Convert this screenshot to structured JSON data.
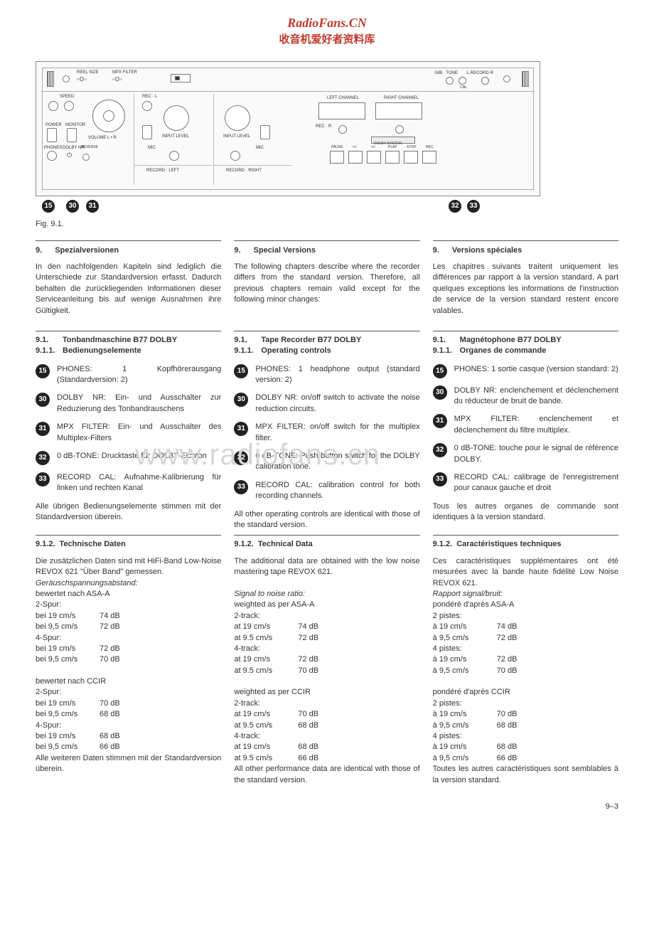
{
  "site": {
    "title": "RadioFans.CN",
    "subtitle": "收音机爱好者资料库"
  },
  "figure": {
    "caption": "Fig. 9.1.",
    "callouts": [
      "15",
      "30",
      "31",
      "32",
      "33"
    ],
    "panel_labels": {
      "reel_size": "REEL SIZE",
      "mpx_filter": "MPX FILTER",
      "speed": "SPEED",
      "power": "POWER",
      "monitor": "MONITOR",
      "volume": "VOLUME  L • R",
      "phones": "PHONES",
      "dolby": "DOLBY NR",
      "reverse": "REVERSE",
      "rec_l": "REC · L",
      "input_level_l": "INPUT LEVEL",
      "mic_l": "MIC",
      "record_left": "RECORD · LEFT",
      "input_level_r": "INPUT LEVEL",
      "mic_r": "MIC",
      "record_right": "RECORD · RIGHT",
      "left_ch": "LEFT CHANNEL",
      "right_ch": "RIGHT CHANNEL",
      "rec_r": "REC · R",
      "dolby_sys": "DOLBY SYSTEM",
      "pause": "PAUSE",
      "rew": "<<",
      "ffwd": ">>",
      "play": "PLAY",
      "stop": "STOP",
      "rec": "REC",
      "odb": "0dB · TONE",
      "lrecord": "L·RECORD·R",
      "cal": "CAL"
    }
  },
  "watermark": "www.radiofans.cn",
  "columns": {
    "de": {
      "sec9_num": "9.",
      "sec9_title": "Spezialversionen",
      "intro": "In den nachfolgenden Kapiteln sind lediglich die Unterschiede zur Standardversion erfasst. Dadurch behalten die zurückliegenden Informationen dieser Serviceanleitung bis auf wenige Ausnahmen ihre Gültigkeit.",
      "s911_num": "9.1.",
      "s911_title": "Tonbandmaschine B77 DOLBY",
      "s9111_num": "9.1.1.",
      "s9111_title": "Bedienungselemente",
      "controls": [
        {
          "n": "15",
          "t": "PHONES: 1 Kopfhörerausgang (Standardversion: 2)"
        },
        {
          "n": "30",
          "t": "DOLBY NR: Ein- und Ausschalter zur Reduzierung des Tonbandrauschens"
        },
        {
          "n": "31",
          "t": "MPX FILTER: Ein- und Ausschalter des Multiplex-Filters"
        },
        {
          "n": "32",
          "t": "0 dB-TONE: Drucktaste für DOLBY-Eichton"
        },
        {
          "n": "33",
          "t": "RECORD CAL: Aufnahme-Kalibrierung für linken und rechten Kanal"
        }
      ],
      "controls_note": "Alle übrigen Bedienungselemente stimmen mit der Standardversion überein.",
      "s9112_num": "9.1.2.",
      "s9112_title": "Technische Daten",
      "tech_intro": "Die zusätzlichen Daten sind mit HiFi-Band Low-Noise REVOX 621 \"Über Band\" gemessen.",
      "snr_label": "Geräuschspannungsabstand:",
      "w1": "bewertet nach ASA-A",
      "g1": "2-Spur:",
      "r1a": "bei 19  cm/s",
      "v1a": "74 dB",
      "r1b": "bei 9,5 cm/s",
      "v1b": "72 dB",
      "g2": "4-Spur:",
      "r2a": "bei 19  cm/s",
      "v2a": "72 dB",
      "r2b": "bei 9,5 cm/s",
      "v2b": "70 dB",
      "w2": "bewertet nach CCIR",
      "g3": "2-Spur:",
      "r3a": "bei 19  cm/s",
      "v3a": "70 dB",
      "r3b": "bei 9,5 cm/s",
      "v3b": "68 dB",
      "g4": "4-Spur:",
      "r4a": "bei 19  cm/s",
      "v4a": "68 dB",
      "r4b": "bei 9,5 cm/s",
      "v4b": "66 dB",
      "tech_note": "Alle weiteren Daten stimmen mit der Standardversion überein."
    },
    "en": {
      "sec9_num": "9.",
      "sec9_title": "Special Versions",
      "intro": "The following chapters describe where the recorder differs from the standard version. Therefore, all previous chapters remain valid except for the following minor changes:",
      "s911_num": "9.1.",
      "s911_title": "Tape Recorder B77 DOLBY",
      "s9111_num": "9.1.1.",
      "s9111_title": "Operating controls",
      "controls": [
        {
          "n": "15",
          "t": "PHONES: 1 headphone output (standard version: 2)"
        },
        {
          "n": "30",
          "t": "DOLBY NR: on/off switch to activate the noise reduction circuits."
        },
        {
          "n": "31",
          "t": "MPX FILTER: on/off switch for the multiplex filter."
        },
        {
          "n": "32",
          "t": "0 dB-TONE: Push-button switch for the DOLBY calibration tone."
        },
        {
          "n": "33",
          "t": "RECORD CAL: calibration control for both recording channels."
        }
      ],
      "controls_note": "All other operating controls are identical with those of the standard version.",
      "s9112_num": "9.1.2.",
      "s9112_title": "Technical Data",
      "tech_intro": "The additional data are obtained with the low noise mastering tape REVOX 621.",
      "snr_label": "Signal to noise ratio:",
      "w1": "weighted as per ASA-A",
      "g1": "2-track:",
      "r1a": "at 19  cm/s",
      "v1a": "74 dB",
      "r1b": "at 9.5 cm/s",
      "v1b": "72 dB",
      "g2": "4-track:",
      "r2a": "at 19  cm/s",
      "v2a": "72 dB",
      "r2b": "at 9.5 cm/s",
      "v2b": "70 dB",
      "w2": "weighted as per CCIR",
      "g3": "2-track:",
      "r3a": "at 19  cm/s",
      "v3a": "70 dB",
      "r3b": "at 9.5 cm/s",
      "v3b": "68 dB",
      "g4": "4-track:",
      "r4a": "at 19  cm/s",
      "v4a": "68 dB",
      "r4b": "at 9.5 cm/s",
      "v4b": "66 dB",
      "tech_note": "All other performance data are identical with those of the standard version."
    },
    "fr": {
      "sec9_num": "9.",
      "sec9_title": "Versions spéciales",
      "intro": "Les chapitres suivants traitent uniquement les différences par rapport à la version standard. A part quelques exceptions les informations de l'instruction de service de la version standard restent encore valables.",
      "s911_num": "9.1.",
      "s911_title": "Magnétophone B77 DOLBY",
      "s9111_num": "9.1.1.",
      "s9111_title": "Organes de commande",
      "controls": [
        {
          "n": "15",
          "t": "PHONES: 1 sortie casque (version standard: 2)"
        },
        {
          "n": "30",
          "t": "DOLBY NR: enclenchement et déclenchement du réducteur de bruit de bande."
        },
        {
          "n": "31",
          "t": "MPX FILTER: enclenchement et déclenchement du filtre multiplex."
        },
        {
          "n": "32",
          "t": "0 dB-TONE: touche pour le signal de référence DOLBY."
        },
        {
          "n": "33",
          "t": "RECORD CAL: calibrage de l'enregistrement pour canaux gauche et droit"
        }
      ],
      "controls_note": "Tous les autres organes de commande sont identiques à la version standard.",
      "s9112_num": "9.1.2.",
      "s9112_title": "Caractéristiques techniques",
      "tech_intro": "Ces caractéristiques supplémentaires ont été mesurées avec la bande haute fidélité Low Noise REVOX 621.",
      "snr_label": "Rapport signal/bruit:",
      "w1": "pondéré d'après ASA-A",
      "g1": "2 pistes:",
      "r1a": "à 19  cm/s",
      "v1a": "74 dB",
      "r1b": "à 9,5 cm/s",
      "v1b": "72 dB",
      "g2": "4 pistes:",
      "r2a": "à 19  cm/s",
      "v2a": "72 dB",
      "r2b": "à 9,5 cm/s",
      "v2b": "70 dB",
      "w2": "pondéré d'après CCIR",
      "g3": "2 pistes:",
      "r3a": "à 19  cm/s",
      "v3a": "70 dB",
      "r3b": "à 9,5 cm/s",
      "v3b": "68 dB",
      "g4": "4 pistes:",
      "r4a": "à 19  cm/s",
      "v4a": "68 dB",
      "r4b": "à 9,5 cm/s",
      "v4b": "66 dB",
      "tech_note": "Toutes les autres caractéristiques sont semblables à la version standard."
    }
  },
  "page_number": "9–3"
}
